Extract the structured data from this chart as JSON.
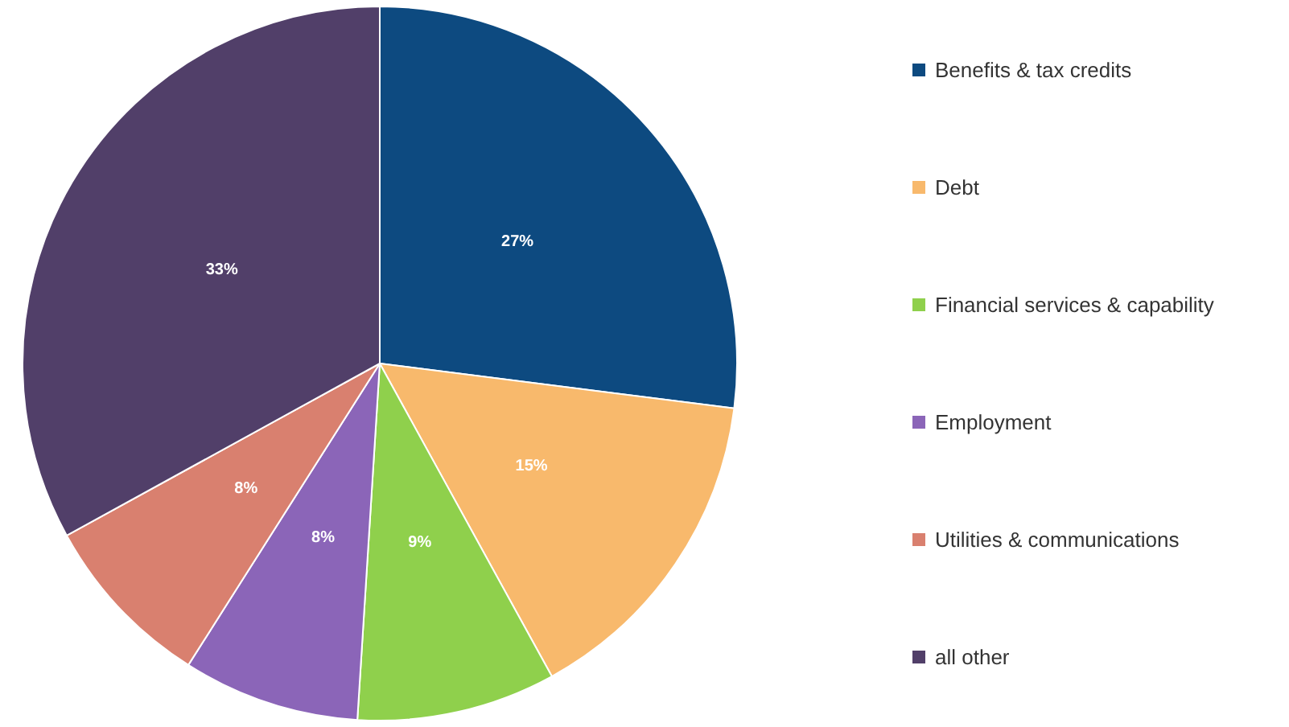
{
  "chart_data": {
    "type": "pie",
    "categories": [
      "Benefits & tax credits",
      "Debt",
      "Financial services & capability",
      "Employment",
      "Utilities & communications",
      "all other"
    ],
    "values": [
      27,
      15,
      9,
      8,
      8,
      33
    ],
    "colors": [
      "#0d4a80",
      "#f8b96c",
      "#8fd04c",
      "#8b65b8",
      "#d9806f",
      "#513f69"
    ],
    "value_labels": [
      "27%",
      "15%",
      "9%",
      "8%",
      "8%",
      "33%"
    ],
    "legend": "right"
  }
}
